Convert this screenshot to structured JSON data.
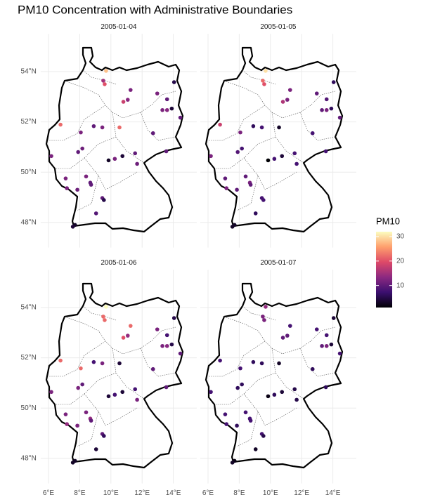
{
  "chart_data": {
    "type": "scatter",
    "title": "PM10 Concentration with Administrative Boundaries",
    "xlim": [
      5.5,
      15.5
    ],
    "ylim": [
      47,
      55.5
    ],
    "xticks": [
      {
        "value": 6,
        "label": "6°E"
      },
      {
        "value": 8,
        "label": "8°E"
      },
      {
        "value": 10,
        "label": "10°E"
      },
      {
        "value": 12,
        "label": "12°E"
      },
      {
        "value": 14,
        "label": "14°E"
      }
    ],
    "yticks": [
      {
        "value": 48,
        "label": "48°N"
      },
      {
        "value": 50,
        "label": "50°N"
      },
      {
        "value": 52,
        "label": "52°N"
      },
      {
        "value": 54,
        "label": "54°N"
      }
    ],
    "grid": true,
    "colorbar": {
      "title": "PM10",
      "lim": [
        1,
        32
      ],
      "ticks": [
        10,
        20,
        30
      ],
      "colors": [
        "#000004",
        "#3b0f70",
        "#8c2981",
        "#de4968",
        "#fe9f6d",
        "#fcfdbf"
      ]
    },
    "facets": [
      {
        "title": "2005-01-04",
        "x": [
          9.69,
          9.51,
          9.6,
          11.26,
          12.97,
          14.05,
          10.8,
          11.08,
          13.6,
          13.3,
          13.6,
          13.9,
          14.45,
          6.77,
          8.07,
          8.9,
          9.45,
          10.55,
          12.7,
          6.18,
          7.9,
          8.17,
          9.85,
          10.25,
          10.74,
          11.55,
          11.68,
          13.55,
          7.1,
          8.41,
          8.68,
          8.73,
          7.18,
          7.85,
          9.45,
          9.55,
          9.05,
          7.7,
          7.56
        ],
        "y": [
          54.03,
          53.64,
          53.5,
          53.27,
          53.13,
          53.58,
          52.8,
          52.88,
          52.9,
          52.47,
          52.47,
          52.53,
          52.17,
          51.89,
          51.58,
          51.83,
          51.78,
          51.78,
          51.55,
          50.64,
          50.8,
          50.94,
          50.47,
          50.53,
          50.64,
          50.75,
          50.33,
          50.83,
          49.75,
          49.83,
          49.58,
          49.5,
          49.36,
          49.3,
          48.97,
          48.89,
          48.36,
          47.9,
          47.83
        ],
        "values": [
          28,
          15,
          20,
          12,
          12,
          5,
          18,
          13,
          10,
          12,
          13,
          4,
          10,
          22,
          12,
          10,
          12,
          22,
          10,
          12,
          10,
          11,
          3,
          12,
          4,
          10,
          11,
          10,
          12,
          12,
          10,
          10,
          12,
          11,
          10,
          5,
          9,
          3,
          4
        ]
      },
      {
        "title": "2005-01-05",
        "x": [
          9.69,
          9.51,
          9.6,
          11.26,
          12.97,
          14.05,
          10.8,
          11.08,
          13.6,
          13.3,
          13.6,
          13.9,
          14.45,
          6.77,
          8.07,
          8.9,
          9.45,
          10.55,
          12.7,
          6.18,
          7.9,
          8.17,
          9.85,
          10.25,
          10.74,
          11.55,
          11.68,
          13.55,
          7.1,
          8.41,
          8.68,
          8.73,
          7.18,
          7.85,
          9.45,
          9.55,
          9.05,
          7.7,
          7.56
        ],
        "y": [
          54.03,
          53.64,
          53.5,
          53.27,
          53.13,
          53.58,
          52.8,
          52.88,
          52.9,
          52.47,
          52.47,
          52.53,
          52.17,
          51.89,
          51.58,
          51.83,
          51.78,
          51.78,
          51.55,
          50.64,
          50.8,
          50.94,
          50.47,
          50.53,
          50.64,
          50.75,
          50.33,
          50.83,
          49.75,
          49.83,
          49.58,
          49.5,
          49.36,
          49.3,
          48.97,
          48.89,
          48.36,
          47.9,
          47.83
        ],
        "values": [
          30,
          22,
          20,
          12,
          10,
          6,
          16,
          12,
          9,
          10,
          12,
          6,
          10,
          18,
          12,
          6,
          8,
          3,
          8,
          12,
          9,
          8,
          1,
          8,
          4,
          8,
          8,
          8,
          10,
          10,
          12,
          10,
          12,
          10,
          8,
          8,
          6,
          3,
          3
        ]
      },
      {
        "title": "2005-01-06",
        "x": [
          9.69,
          9.51,
          9.6,
          11.26,
          12.97,
          14.05,
          10.8,
          11.08,
          13.6,
          13.3,
          13.6,
          13.9,
          14.45,
          6.77,
          8.07,
          8.9,
          9.45,
          10.55,
          12.7,
          6.18,
          7.9,
          8.17,
          9.85,
          10.25,
          10.74,
          11.55,
          11.68,
          13.55,
          7.1,
          8.41,
          8.68,
          8.73,
          7.18,
          7.85,
          9.45,
          9.55,
          9.05,
          7.7,
          7.56
        ],
        "y": [
          54.03,
          53.64,
          53.5,
          53.27,
          53.13,
          53.58,
          52.8,
          52.88,
          52.9,
          52.47,
          52.47,
          52.53,
          52.17,
          51.89,
          51.58,
          51.83,
          51.78,
          51.78,
          51.55,
          50.64,
          50.8,
          50.94,
          50.47,
          50.53,
          50.64,
          50.75,
          50.33,
          50.83,
          49.75,
          49.83,
          49.58,
          49.5,
          49.36,
          49.3,
          48.97,
          48.89,
          48.36,
          47.9,
          47.83
        ],
        "values": [
          32,
          22,
          22,
          22,
          12,
          5,
          20,
          14,
          8,
          12,
          13,
          5,
          10,
          22,
          22,
          8,
          12,
          4,
          10,
          12,
          12,
          10,
          4,
          8,
          4,
          8,
          12,
          10,
          12,
          12,
          14,
          10,
          14,
          12,
          10,
          6,
          4,
          3,
          3
        ]
      },
      {
        "title": "2005-01-07",
        "x": [
          9.69,
          9.51,
          9.6,
          11.26,
          12.97,
          14.05,
          10.8,
          11.08,
          13.6,
          13.3,
          13.6,
          13.9,
          14.45,
          6.77,
          8.07,
          8.9,
          9.45,
          10.55,
          12.7,
          6.18,
          7.9,
          8.17,
          9.85,
          10.25,
          10.74,
          11.55,
          11.68,
          13.55,
          7.1,
          8.41,
          8.68,
          8.73,
          7.18,
          7.85,
          9.45,
          9.55,
          9.05,
          7.7,
          7.56
        ],
        "y": [
          54.03,
          53.64,
          53.5,
          53.27,
          53.13,
          53.58,
          52.8,
          52.88,
          52.9,
          52.47,
          52.47,
          52.53,
          52.17,
          51.89,
          51.58,
          51.83,
          51.78,
          51.78,
          51.55,
          50.64,
          50.8,
          50.94,
          50.47,
          50.53,
          50.64,
          50.75,
          50.33,
          50.83,
          49.75,
          49.83,
          49.58,
          49.5,
          49.36,
          49.3,
          48.97,
          48.89,
          48.36,
          47.9,
          47.83
        ],
        "values": [
          14,
          12,
          12,
          8,
          8,
          4,
          10,
          10,
          8,
          10,
          12,
          4,
          8,
          8,
          8,
          6,
          6,
          3,
          6,
          8,
          6,
          6,
          2,
          6,
          4,
          5,
          5,
          6,
          8,
          8,
          8,
          8,
          8,
          6,
          8,
          5,
          3,
          2,
          3
        ]
      }
    ]
  }
}
